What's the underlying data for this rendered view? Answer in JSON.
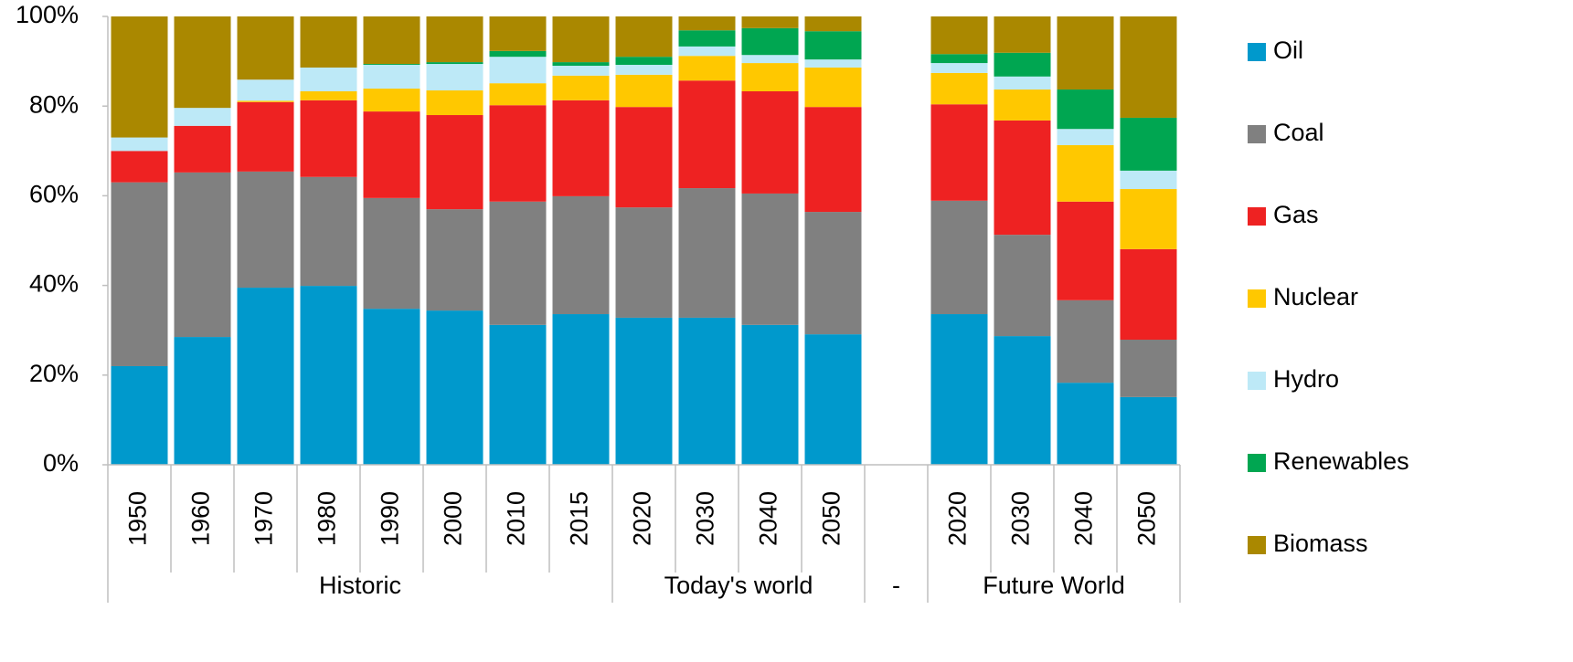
{
  "chart_data": {
    "type": "stacked_bar",
    "categories": [
      "1950",
      "1960",
      "1970",
      "1980",
      "1990",
      "2000",
      "2010",
      "2015",
      "2020",
      "2030",
      "2040",
      "2050",
      null,
      "2020",
      "2030",
      "2040",
      "2050"
    ],
    "groups": [
      {
        "name": "Historic",
        "count": 8
      },
      {
        "name": "Today's world",
        "count": 4
      },
      {
        "name": "-",
        "count": 1
      },
      {
        "name": "Future World",
        "count": 4
      }
    ],
    "series": [
      {
        "name": "Oil",
        "color": "#0099cc",
        "values": [
          22,
          28.5,
          39.5,
          39.9,
          34.8,
          34.4,
          31.2,
          33.6,
          32.8,
          32.8,
          31.2,
          29.1,
          null,
          33.6,
          28.7,
          18.3,
          15.1
        ]
      },
      {
        "name": "Coal",
        "color": "#808080",
        "values": [
          41,
          36.7,
          25.9,
          24.3,
          24.7,
          22.6,
          27.5,
          26.3,
          24.6,
          28.9,
          29.3,
          27.3,
          null,
          25.3,
          22.6,
          18.4,
          12.8
        ]
      },
      {
        "name": "Gas",
        "color": "#ee2222",
        "values": [
          7,
          10.4,
          15.5,
          17.1,
          19.3,
          21,
          21.5,
          21.4,
          22.4,
          24,
          22.8,
          23.4,
          null,
          21.5,
          25.5,
          22,
          20.2
        ]
      },
      {
        "name": "Nuclear",
        "color": "#ffc800",
        "values": [
          0,
          0,
          0.3,
          2,
          5.1,
          5.5,
          4.9,
          5.5,
          7.2,
          5.5,
          6.3,
          8.8,
          null,
          7,
          6.9,
          12.6,
          13.4
        ]
      },
      {
        "name": "Hydro",
        "color": "#bde9f7",
        "values": [
          3,
          4,
          4.7,
          5.3,
          5.3,
          5.9,
          5.9,
          2.2,
          2.2,
          2.1,
          1.8,
          1.8,
          null,
          2.2,
          2.9,
          3.6,
          4.1
        ]
      },
      {
        "name": "Renewables",
        "color": "#00a651",
        "values": [
          0,
          0,
          0,
          0,
          0.2,
          0.4,
          1.3,
          0.8,
          1.8,
          3.6,
          6,
          6.3,
          null,
          2,
          5.3,
          8.8,
          11.8
        ]
      },
      {
        "name": "Biomass",
        "color": "#aa8800",
        "values": [
          27,
          20.4,
          14.1,
          11.4,
          10.6,
          10.2,
          7.7,
          10.2,
          9,
          3.1,
          2.6,
          3.3,
          null,
          8.4,
          8.1,
          16.3,
          22.6
        ]
      }
    ],
    "ylim": [
      0,
      100
    ],
    "yticks": [
      {
        "value": 0,
        "label": "0%"
      },
      {
        "value": 20,
        "label": "20%"
      },
      {
        "value": 40,
        "label": "40%"
      },
      {
        "value": 60,
        "label": "60%"
      },
      {
        "value": 80,
        "label": "80%"
      },
      {
        "value": 100,
        "label": "100%"
      }
    ],
    "legend": "right"
  }
}
